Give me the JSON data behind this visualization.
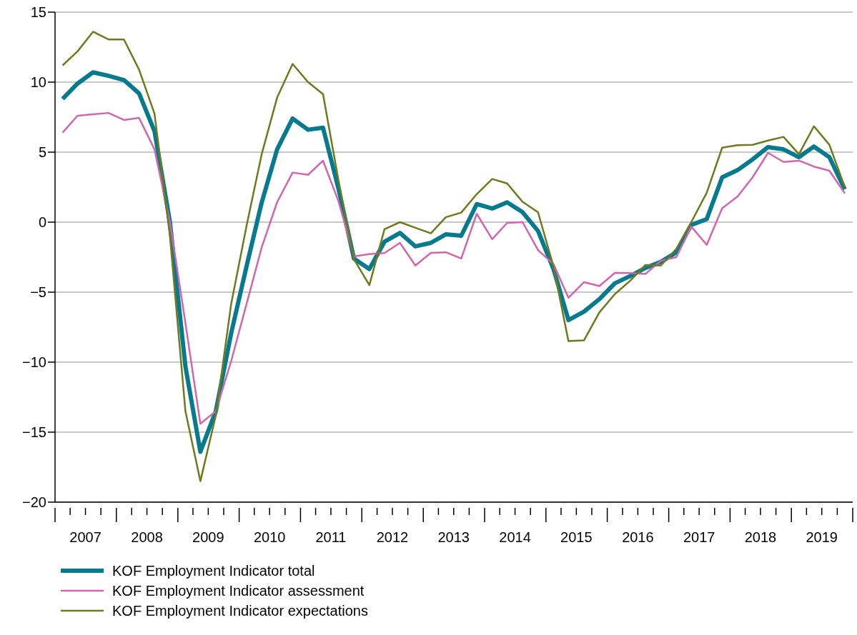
{
  "chart_data": {
    "type": "line",
    "x": [
      "2007-02-15",
      "2007-05-15",
      "2007-08-15",
      "2007-11-15",
      "2008-02-15",
      "2008-05-15",
      "2008-08-15",
      "2008-11-15",
      "2009-02-15",
      "2009-05-15",
      "2009-08-15",
      "2009-11-15",
      "2010-02-15",
      "2010-05-15",
      "2010-08-15",
      "2010-11-15",
      "2011-02-15",
      "2011-05-15",
      "2011-08-15",
      "2011-11-15",
      "2012-02-15",
      "2012-05-15",
      "2012-08-15",
      "2012-11-15",
      "2013-02-15",
      "2013-05-15",
      "2013-08-15",
      "2013-11-15",
      "2014-02-15",
      "2014-05-15",
      "2014-08-15",
      "2014-11-15",
      "2015-02-15",
      "2015-05-15",
      "2015-08-15",
      "2015-11-15",
      "2016-02-15",
      "2016-05-15",
      "2016-08-15",
      "2016-11-15",
      "2017-02-15",
      "2017-05-15",
      "2017-08-15",
      "2017-11-15",
      "2018-02-15",
      "2018-05-15",
      "2018-08-15",
      "2018-11-15",
      "2019-02-15",
      "2019-05-15",
      "2019-08-15",
      "2019-11-15"
    ],
    "series": [
      {
        "name": "KOF Employment Indicator total",
        "color": "#087a8e",
        "values": [
          8.8,
          9.9,
          10.7,
          10.45,
          10.15,
          9.2,
          6.5,
          0,
          -10.3,
          -16.4,
          -13.5,
          -7.9,
          -3.1,
          1.4,
          5.2,
          7.4,
          6.6,
          6.75,
          2.4,
          -2.6,
          -3.35,
          -1.4,
          -0.77,
          -1.73,
          -1.48,
          -0.87,
          -0.97,
          1.29,
          0.97,
          1.42,
          0.71,
          -0.63,
          -3.35,
          -7,
          -6.4,
          -5.5,
          -4.37,
          -3.86,
          -3.27,
          -2.84,
          -2.16,
          -0.2,
          0.22,
          3.2,
          3.72,
          4.48,
          5.36,
          5.2,
          4.64,
          5.4,
          4.64,
          2.35
        ]
      },
      {
        "name": "KOF Employment Indicator assessment",
        "color": "#d066ac",
        "values": [
          6.4,
          7.6,
          7.7,
          7.8,
          7.3,
          7.45,
          5.2,
          0,
          -7.2,
          -14.4,
          -13.5,
          -9.9,
          -5.8,
          -1.8,
          1.43,
          3.54,
          3.38,
          4.39,
          1.5,
          -2.45,
          -2.28,
          -2.21,
          -1.48,
          -3.1,
          -2.19,
          -2.15,
          -2.6,
          0.6,
          -1.22,
          -0.05,
          0,
          -2,
          -3,
          -5.4,
          -4.29,
          -4.57,
          -3.62,
          -3.64,
          -3.7,
          -2.76,
          -2.5,
          -0.31,
          -1.62,
          0.99,
          1.84,
          3.2,
          4.95,
          4.3,
          4.39,
          3.97,
          3.67,
          2.06
        ]
      },
      {
        "name": "KOF Employment Indicator expectations",
        "color": "#6e7a1c",
        "values": [
          11.2,
          12.2,
          13.6,
          13.05,
          13.05,
          10.9,
          7.75,
          -1,
          -13.5,
          -18.5,
          -13.8,
          -5.8,
          -0.2,
          4.85,
          8.9,
          11.3,
          10,
          9.15,
          3,
          -2.65,
          -4.5,
          -0.5,
          0,
          -0.4,
          -0.8,
          0.35,
          0.68,
          2,
          3.08,
          2.77,
          1.45,
          0.7,
          -3.17,
          -8.5,
          -8.45,
          -6.45,
          -5.14,
          -4.2,
          -3.06,
          -3.1,
          -1.9,
          0,
          2.1,
          5.32,
          5.5,
          5.52,
          5.83,
          6.09,
          4.85,
          6.85,
          5.53,
          2.5
        ]
      }
    ],
    "xlim": [
      "2007-01-01",
      "2020-01-01"
    ],
    "xticks": [
      {
        "value": "2007-01-01",
        "label": null
      },
      {
        "value": "2007-04-01",
        "label": null
      },
      {
        "value": "2007-07-01",
        "label": "2007"
      },
      {
        "value": "2007-10-01",
        "label": null
      },
      {
        "value": "2008-01-01",
        "label": null
      },
      {
        "value": "2008-04-01",
        "label": null
      },
      {
        "value": "2008-07-01",
        "label": "2008"
      },
      {
        "value": "2008-10-01",
        "label": null
      },
      {
        "value": "2009-01-01",
        "label": null
      },
      {
        "value": "2009-04-01",
        "label": null
      },
      {
        "value": "2009-07-01",
        "label": "2009"
      },
      {
        "value": "2009-10-01",
        "label": null
      },
      {
        "value": "2010-01-01",
        "label": null
      },
      {
        "value": "2010-04-01",
        "label": null
      },
      {
        "value": "2010-07-01",
        "label": "2010"
      },
      {
        "value": "2010-10-01",
        "label": null
      },
      {
        "value": "2011-01-01",
        "label": null
      },
      {
        "value": "2011-04-01",
        "label": null
      },
      {
        "value": "2011-07-01",
        "label": "2011"
      },
      {
        "value": "2011-10-01",
        "label": null
      },
      {
        "value": "2012-01-01",
        "label": null
      },
      {
        "value": "2012-04-01",
        "label": null
      },
      {
        "value": "2012-07-01",
        "label": "2012"
      },
      {
        "value": "2012-10-01",
        "label": null
      },
      {
        "value": "2013-01-01",
        "label": null
      },
      {
        "value": "2013-04-01",
        "label": null
      },
      {
        "value": "2013-07-01",
        "label": "2013"
      },
      {
        "value": "2013-10-01",
        "label": null
      },
      {
        "value": "2014-01-01",
        "label": null
      },
      {
        "value": "2014-04-01",
        "label": null
      },
      {
        "value": "2014-07-01",
        "label": "2014"
      },
      {
        "value": "2014-10-01",
        "label": null
      },
      {
        "value": "2015-01-01",
        "label": null
      },
      {
        "value": "2015-04-01",
        "label": null
      },
      {
        "value": "2015-07-01",
        "label": "2015"
      },
      {
        "value": "2015-10-01",
        "label": null
      },
      {
        "value": "2016-01-01",
        "label": null
      },
      {
        "value": "2016-04-01",
        "label": null
      },
      {
        "value": "2016-07-01",
        "label": "2016"
      },
      {
        "value": "2016-10-01",
        "label": null
      },
      {
        "value": "2017-01-01",
        "label": null
      },
      {
        "value": "2017-04-01",
        "label": null
      },
      {
        "value": "2017-07-01",
        "label": "2017"
      },
      {
        "value": "2017-10-01",
        "label": null
      },
      {
        "value": "2018-01-01",
        "label": null
      },
      {
        "value": "2018-04-01",
        "label": null
      },
      {
        "value": "2018-07-01",
        "label": "2018"
      },
      {
        "value": "2018-10-01",
        "label": null
      },
      {
        "value": "2019-01-01",
        "label": null
      },
      {
        "value": "2019-04-01",
        "label": null
      },
      {
        "value": "2019-07-01",
        "label": "2019"
      },
      {
        "value": "2019-10-01",
        "label": null
      },
      {
        "value": "2020-01-01",
        "label": null
      }
    ],
    "ylim": [
      -20,
      15
    ],
    "yticks": [
      {
        "value": -20,
        "label": "−20"
      },
      {
        "value": -15,
        "label": "−15"
      },
      {
        "value": -10,
        "label": "−10"
      },
      {
        "value": -5,
        "label": "−5"
      },
      0,
      5,
      10,
      15
    ],
    "grid": "y",
    "legend": "bottom",
    "marker": "none",
    "line_style": "solid"
  }
}
